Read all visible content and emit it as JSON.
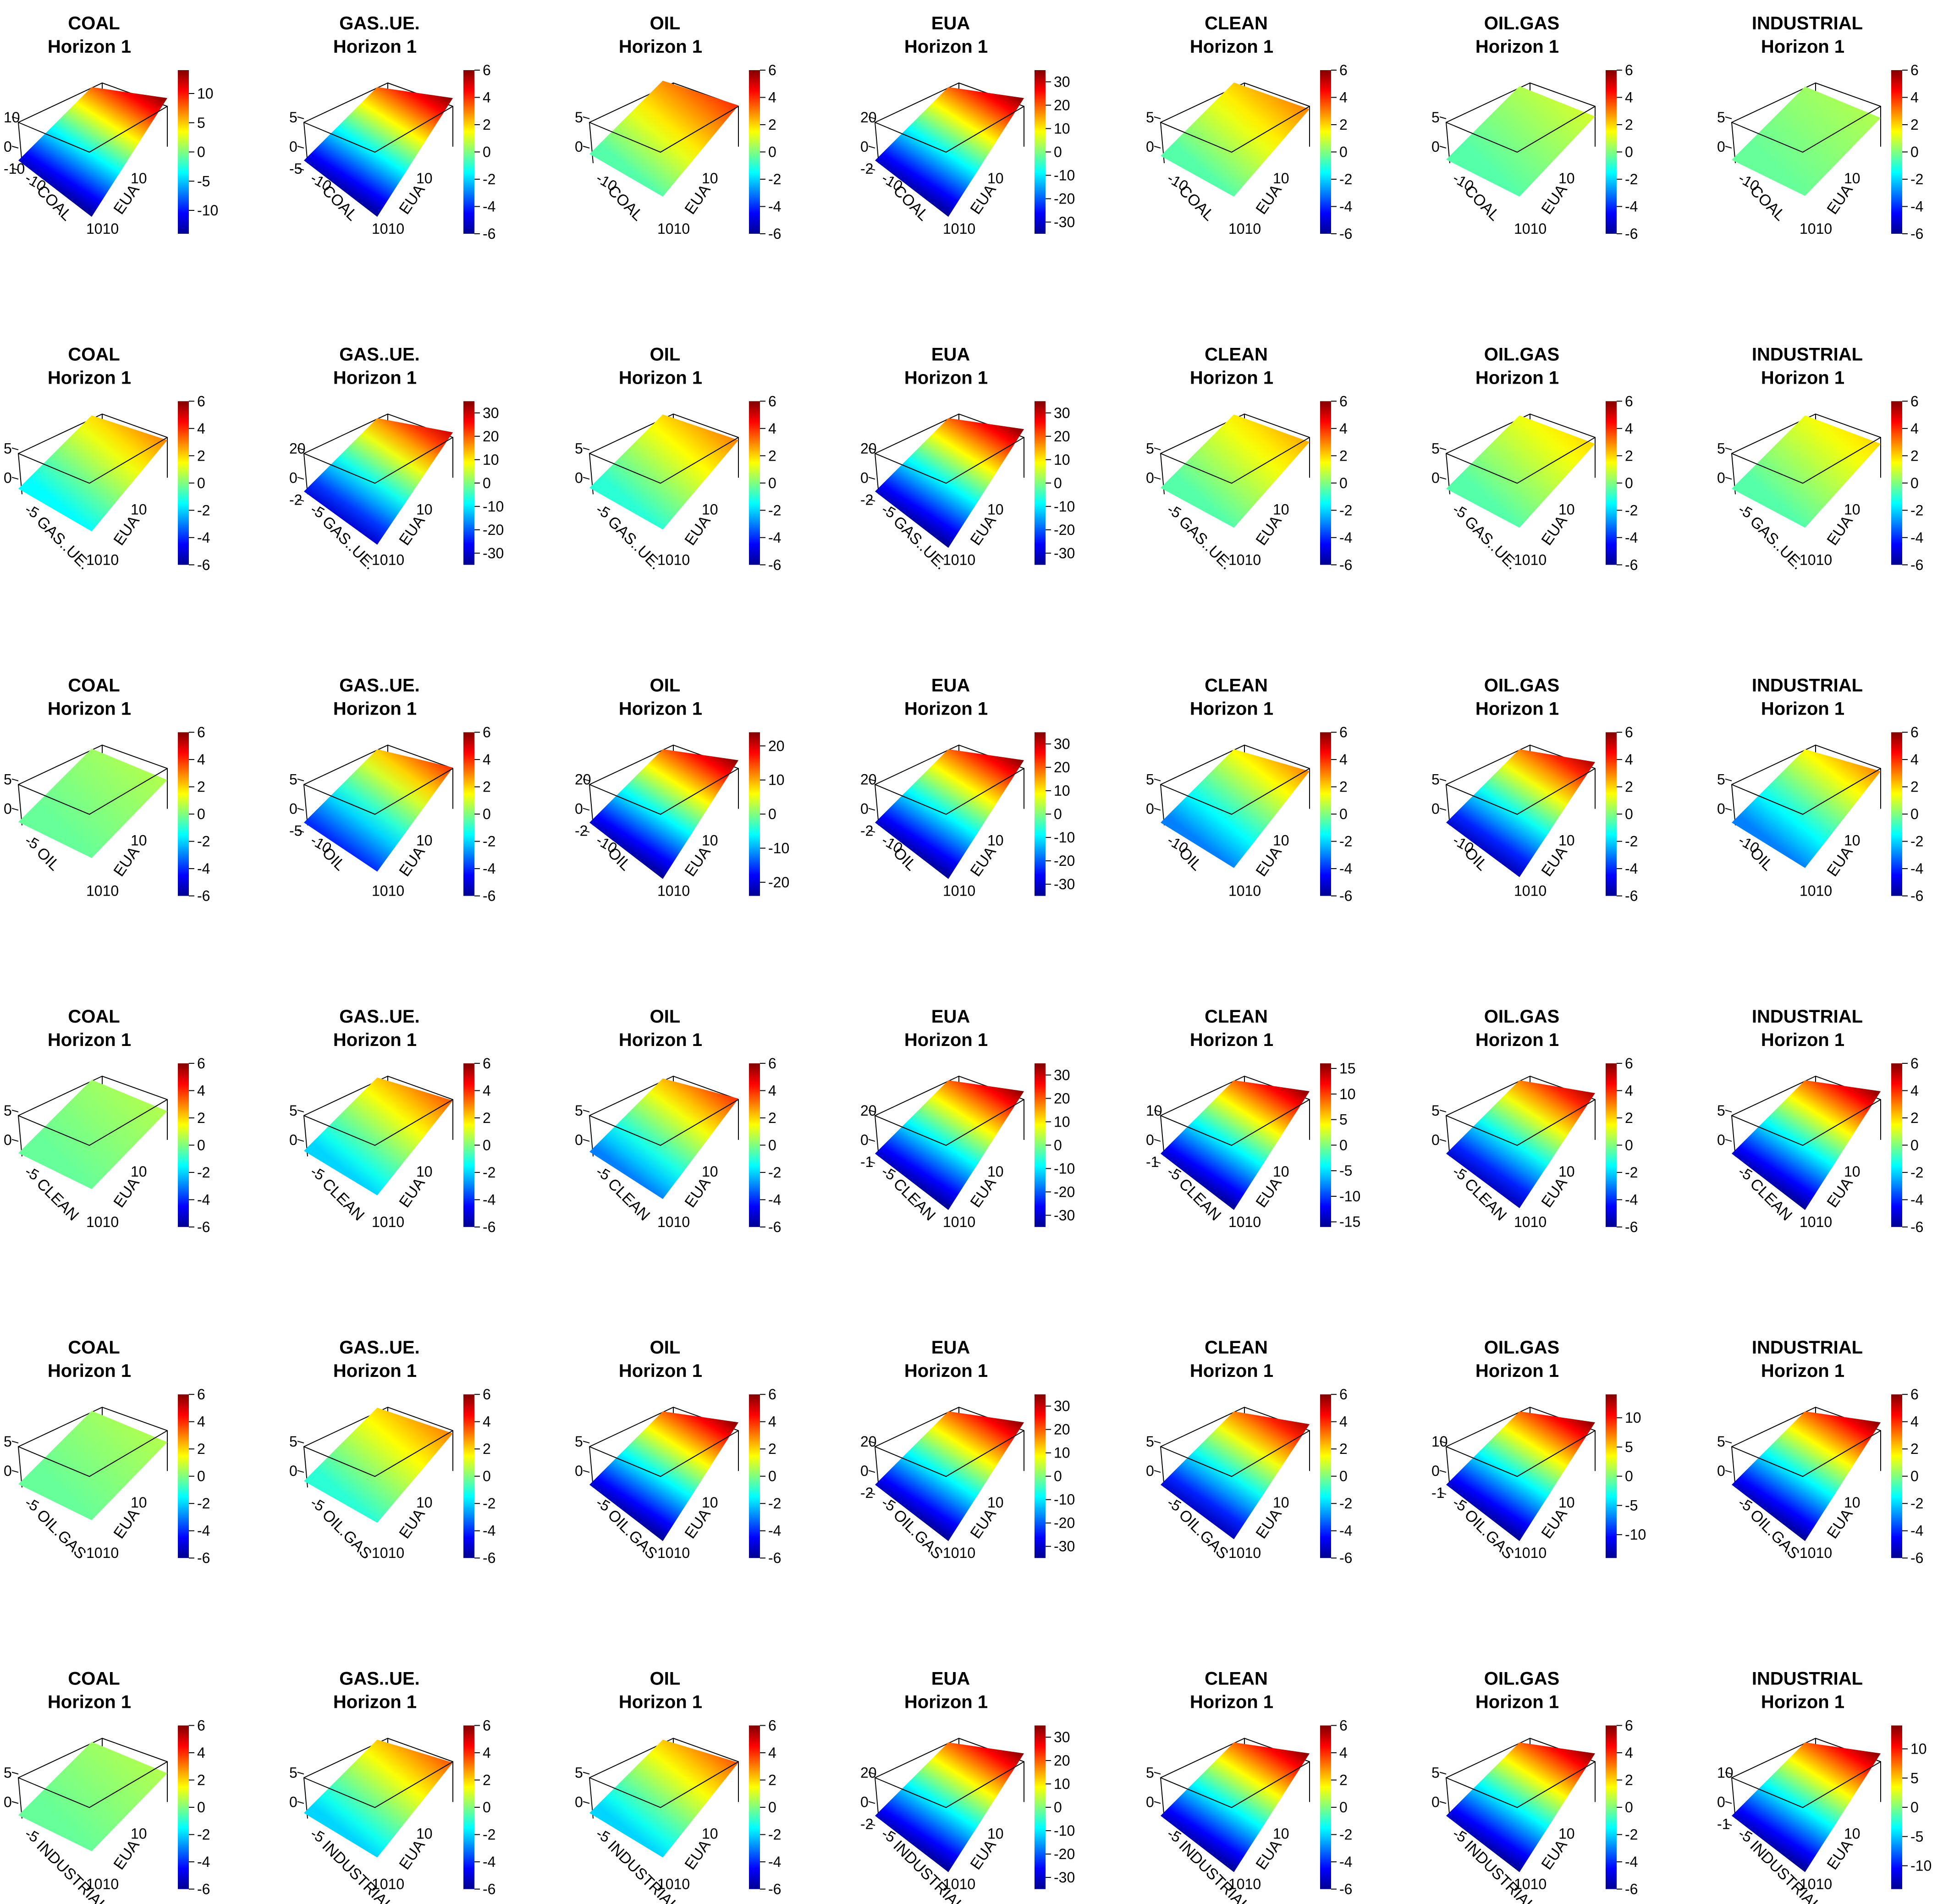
{
  "figure": {
    "title_line2": "Horizon  1",
    "colormap": [
      "#00008F",
      "#0000FF",
      "#0080FF",
      "#00FFFF",
      "#80FF80",
      "#FFFF00",
      "#FF8000",
      "#FF0000",
      "#800000"
    ],
    "box_color": "#000000",
    "background": "#FFFFFF"
  },
  "chart_data": {
    "type": "surface3d-grid",
    "rows": 6,
    "cols": 7,
    "panel_columns": [
      "COAL",
      "GAS..UE.",
      "OIL",
      "EUA",
      "CLEAN",
      "OIL.GAS",
      "INDUSTRIAL"
    ],
    "panel_rows": [
      "COAL",
      "GAS..UE.",
      "OIL",
      "CLEAN",
      "OIL.GAS",
      "INDUSTRIAL"
    ],
    "x_axis_labels": [
      "COAL",
      "GAS..UE.",
      "OIL",
      "CLEAN",
      "OIL.GAS",
      "INDUSTRIAL"
    ],
    "y_axis_label": "EUA",
    "z_axis_range": {
      "default": [
        -6,
        6
      ],
      "big": [
        -30,
        30
      ]
    },
    "colorbar": {
      "default": {
        "range": [
          -6,
          6
        ],
        "ticks": [
          "6",
          "4",
          "2",
          "0",
          "-2",
          "-4",
          "-6"
        ]
      },
      "eua": {
        "range": [
          -35,
          35
        ],
        "ticks": [
          "30",
          "20",
          "10",
          "0",
          "-10",
          "-20",
          "-30"
        ]
      },
      "c13": {
        "range": [
          -14,
          14
        ],
        "ticks": [
          "10",
          "5",
          "0",
          "-5",
          "-10"
        ]
      },
      "c20": {
        "range": [
          -24,
          24
        ],
        "ticks": [
          "20",
          "10",
          "0",
          "-10",
          "-20"
        ]
      },
      "c15": {
        "range": [
          -16,
          16
        ],
        "ticks": [
          "15",
          "10",
          "5",
          "0",
          "-5",
          "-10",
          "-15"
        ]
      }
    },
    "panels": [
      {
        "row": 0,
        "col": 0,
        "title": "COAL",
        "surface_range": [
          -14,
          14
        ],
        "colorbar": "c13",
        "z_ticks": [
          "10",
          "0",
          "-10"
        ],
        "y_ticks": [
          "10"
        ],
        "x_ticks": [
          "-10"
        ],
        "x_label": "COAL",
        "y_label": "EUA",
        "corner_ticks": "1010"
      },
      {
        "row": 0,
        "col": 1,
        "title": "GAS..UE.",
        "surface_range": [
          -6,
          6
        ],
        "colorbar": "default",
        "z_ticks": [
          "5",
          "0",
          "-5"
        ],
        "y_ticks": [
          "10"
        ],
        "x_ticks": [
          "-10"
        ],
        "x_label": "COAL",
        "y_label": "EUA",
        "corner_ticks": "1010"
      },
      {
        "row": 0,
        "col": 2,
        "title": "OIL",
        "surface_range": [
          -0.5,
          4
        ],
        "colorbar": "default",
        "z_ticks": [
          "5",
          "0"
        ],
        "y_ticks": [
          "10"
        ],
        "x_ticks": [
          "-10"
        ],
        "x_label": "COAL",
        "y_label": "EUA",
        "corner_ticks": "1010"
      },
      {
        "row": 0,
        "col": 3,
        "title": "EUA",
        "surface_range": [
          -35,
          35
        ],
        "colorbar": "eua",
        "z_ticks": [
          "20",
          "0",
          "-2"
        ],
        "y_ticks": [
          "10"
        ],
        "x_ticks": [
          "-10"
        ],
        "x_label": "COAL",
        "y_label": "EUA",
        "corner_ticks": "1010"
      },
      {
        "row": 0,
        "col": 4,
        "title": "CLEAN",
        "surface_range": [
          -0.5,
          3
        ],
        "colorbar": "default",
        "z_ticks": [
          "5",
          "0"
        ],
        "y_ticks": [
          "10"
        ],
        "x_ticks": [
          "-10"
        ],
        "x_label": "COAL",
        "y_label": "EUA",
        "corner_ticks": "1010"
      },
      {
        "row": 0,
        "col": 5,
        "title": "OIL.GAS",
        "surface_range": [
          -0.5,
          1
        ],
        "colorbar": "default",
        "z_ticks": [
          "5",
          "0"
        ],
        "y_ticks": [
          "10"
        ],
        "x_ticks": [
          "-10"
        ],
        "x_label": "COAL",
        "y_label": "EUA",
        "corner_ticks": "1010"
      },
      {
        "row": 0,
        "col": 6,
        "title": "INDUSTRIAL",
        "surface_range": [
          -0.3,
          0.6
        ],
        "colorbar": "default",
        "z_ticks": [
          "5",
          "0"
        ],
        "y_ticks": [
          "10"
        ],
        "x_ticks": [
          "-10"
        ],
        "x_label": "COAL",
        "y_label": "EUA",
        "corner_ticks": "1010"
      },
      {
        "row": 1,
        "col": 0,
        "title": "COAL",
        "surface_range": [
          -1.5,
          3
        ],
        "colorbar": "default",
        "z_ticks": [
          "5",
          "0"
        ],
        "y_ticks": [
          "10"
        ],
        "x_ticks": [
          "-5"
        ],
        "x_label": "GAS..UE.",
        "y_label": "EUA",
        "corner_ticks": "1010"
      },
      {
        "row": 1,
        "col": 1,
        "title": "GAS..UE.",
        "surface_range": [
          -30,
          30
        ],
        "colorbar": "eua",
        "z_ticks": [
          "20",
          "0",
          "-2"
        ],
        "y_ticks": [
          "10"
        ],
        "x_ticks": [
          "-5"
        ],
        "x_label": "GAS..UE.",
        "y_label": "EUA",
        "corner_ticks": "1010"
      },
      {
        "row": 1,
        "col": 2,
        "title": "OIL",
        "surface_range": [
          -1,
          3
        ],
        "colorbar": "default",
        "z_ticks": [
          "5",
          "0"
        ],
        "y_ticks": [
          "10"
        ],
        "x_ticks": [
          "-5"
        ],
        "x_label": "GAS..UE.",
        "y_label": "EUA",
        "corner_ticks": "1010"
      },
      {
        "row": 1,
        "col": 3,
        "title": "EUA",
        "surface_range": [
          -35,
          35
        ],
        "colorbar": "eua",
        "z_ticks": [
          "20",
          "0",
          "-2"
        ],
        "y_ticks": [
          "10"
        ],
        "x_ticks": [
          "-5"
        ],
        "x_label": "GAS..UE.",
        "y_label": "EUA",
        "corner_ticks": "1010"
      },
      {
        "row": 1,
        "col": 4,
        "title": "CLEAN",
        "surface_range": [
          -0.5,
          2.5
        ],
        "colorbar": "default",
        "z_ticks": [
          "5",
          "0"
        ],
        "y_ticks": [
          "10"
        ],
        "x_ticks": [
          "-5"
        ],
        "x_label": "GAS..UE.",
        "y_label": "EUA",
        "corner_ticks": "1010"
      },
      {
        "row": 1,
        "col": 5,
        "title": "OIL.GAS",
        "surface_range": [
          -0.5,
          2
        ],
        "colorbar": "default",
        "z_ticks": [
          "5",
          "0"
        ],
        "y_ticks": [
          "10"
        ],
        "x_ticks": [
          "-5"
        ],
        "x_label": "GAS..UE.",
        "y_label": "EUA",
        "corner_ticks": "1010"
      },
      {
        "row": 1,
        "col": 6,
        "title": "INDUSTRIAL",
        "surface_range": [
          -0.5,
          2
        ],
        "colorbar": "default",
        "z_ticks": [
          "5",
          "0"
        ],
        "y_ticks": [
          "10"
        ],
        "x_ticks": [
          "-5"
        ],
        "x_label": "GAS..UE.",
        "y_label": "EUA",
        "corner_ticks": "1010"
      },
      {
        "row": 2,
        "col": 0,
        "title": "COAL",
        "surface_range": [
          -0.3,
          0.6
        ],
        "colorbar": "default",
        "z_ticks": [
          "5",
          "0"
        ],
        "y_ticks": [
          "10"
        ],
        "x_ticks": [
          "-5"
        ],
        "x_label": "OIL",
        "y_label": "EUA",
        "corner_ticks": "1010"
      },
      {
        "row": 2,
        "col": 1,
        "title": "GAS..UE.",
        "surface_range": [
          -4,
          4
        ],
        "colorbar": "default",
        "z_ticks": [
          "5",
          "0",
          "-5"
        ],
        "y_ticks": [
          "10"
        ],
        "x_ticks": [
          "-10"
        ],
        "x_label": "OIL",
        "y_label": "EUA",
        "corner_ticks": "1010"
      },
      {
        "row": 2,
        "col": 2,
        "title": "OIL",
        "surface_range": [
          -24,
          24
        ],
        "colorbar": "c20",
        "z_ticks": [
          "20",
          "0",
          "-2"
        ],
        "y_ticks": [
          "10"
        ],
        "x_ticks": [
          "-10"
        ],
        "x_label": "OIL",
        "y_label": "EUA",
        "corner_ticks": "1010"
      },
      {
        "row": 2,
        "col": 3,
        "title": "EUA",
        "surface_range": [
          -35,
          35
        ],
        "colorbar": "eua",
        "z_ticks": [
          "20",
          "0",
          "-2"
        ],
        "y_ticks": [
          "10"
        ],
        "x_ticks": [
          "-10"
        ],
        "x_label": "OIL",
        "y_label": "EUA",
        "corner_ticks": "1010"
      },
      {
        "row": 2,
        "col": 4,
        "title": "CLEAN",
        "surface_range": [
          -3,
          3
        ],
        "colorbar": "default",
        "z_ticks": [
          "5",
          "0"
        ],
        "y_ticks": [
          "10"
        ],
        "x_ticks": [
          "-10"
        ],
        "x_label": "OIL",
        "y_label": "EUA",
        "corner_ticks": "1010"
      },
      {
        "row": 2,
        "col": 5,
        "title": "OIL.GAS",
        "surface_range": [
          -5.5,
          5.5
        ],
        "colorbar": "default",
        "z_ticks": [
          "5",
          "0"
        ],
        "y_ticks": [
          "10"
        ],
        "x_ticks": [
          "-10"
        ],
        "x_label": "OIL",
        "y_label": "EUA",
        "corner_ticks": "1010"
      },
      {
        "row": 2,
        "col": 6,
        "title": "INDUSTRIAL",
        "surface_range": [
          -3,
          3
        ],
        "colorbar": "default",
        "z_ticks": [
          "5",
          "0"
        ],
        "y_ticks": [
          "10"
        ],
        "x_ticks": [
          "-10"
        ],
        "x_label": "OIL",
        "y_label": "EUA",
        "corner_ticks": "1010"
      },
      {
        "row": 3,
        "col": 0,
        "title": "COAL",
        "surface_range": [
          -0.3,
          0.6
        ],
        "colorbar": "default",
        "z_ticks": [
          "5",
          "0"
        ],
        "y_ticks": [
          "10"
        ],
        "x_ticks": [
          "-5"
        ],
        "x_label": "CLEAN",
        "y_label": "EUA",
        "corner_ticks": "1010"
      },
      {
        "row": 3,
        "col": 1,
        "title": "GAS..UE.",
        "surface_range": [
          -2,
          3.5
        ],
        "colorbar": "default",
        "z_ticks": [
          "5",
          "0"
        ],
        "y_ticks": [
          "10"
        ],
        "x_ticks": [
          "-5"
        ],
        "x_label": "CLEAN",
        "y_label": "EUA",
        "corner_ticks": "1010"
      },
      {
        "row": 3,
        "col": 2,
        "title": "OIL",
        "surface_range": [
          -3,
          4
        ],
        "colorbar": "default",
        "z_ticks": [
          "5",
          "0"
        ],
        "y_ticks": [
          "10"
        ],
        "x_ticks": [
          "-5"
        ],
        "x_label": "CLEAN",
        "y_label": "EUA",
        "corner_ticks": "1010"
      },
      {
        "row": 3,
        "col": 3,
        "title": "EUA",
        "surface_range": [
          -35,
          35
        ],
        "colorbar": "eua",
        "z_ticks": [
          "20",
          "0",
          "-1"
        ],
        "y_ticks": [
          "10"
        ],
        "x_ticks": [
          "-5"
        ],
        "x_label": "CLEAN",
        "y_label": "EUA",
        "corner_ticks": "1010"
      },
      {
        "row": 3,
        "col": 4,
        "title": "CLEAN",
        "surface_range": [
          -16,
          16
        ],
        "colorbar": "c15",
        "z_ticks": [
          "10",
          "0",
          "-1"
        ],
        "y_ticks": [
          "10"
        ],
        "x_ticks": [
          "-5"
        ],
        "x_label": "CLEAN",
        "y_label": "EUA",
        "corner_ticks": "1010"
      },
      {
        "row": 3,
        "col": 5,
        "title": "OIL.GAS",
        "surface_range": [
          -5.5,
          5.5
        ],
        "colorbar": "default",
        "z_ticks": [
          "5",
          "0"
        ],
        "y_ticks": [
          "10"
        ],
        "x_ticks": [
          "-5"
        ],
        "x_label": "CLEAN",
        "y_label": "EUA",
        "corner_ticks": "1010"
      },
      {
        "row": 3,
        "col": 6,
        "title": "INDUSTRIAL",
        "surface_range": [
          -6,
          6
        ],
        "colorbar": "default",
        "z_ticks": [
          "5",
          "0"
        ],
        "y_ticks": [
          "10"
        ],
        "x_ticks": [
          "-5"
        ],
        "x_label": "CLEAN",
        "y_label": "EUA",
        "corner_ticks": "1010"
      },
      {
        "row": 4,
        "col": 0,
        "title": "COAL",
        "surface_range": [
          -0.3,
          0.6
        ],
        "colorbar": "default",
        "z_ticks": [
          "5",
          "0"
        ],
        "y_ticks": [
          "10"
        ],
        "x_ticks": [
          "-5"
        ],
        "x_label": "OIL.GAS",
        "y_label": "EUA",
        "corner_ticks": "1010"
      },
      {
        "row": 4,
        "col": 1,
        "title": "GAS..UE.",
        "surface_range": [
          -1,
          3
        ],
        "colorbar": "default",
        "z_ticks": [
          "5",
          "0"
        ],
        "y_ticks": [
          "10"
        ],
        "x_ticks": [
          "-5"
        ],
        "x_label": "OIL.GAS",
        "y_label": "EUA",
        "corner_ticks": "1010"
      },
      {
        "row": 4,
        "col": 2,
        "title": "OIL",
        "surface_range": [
          -6,
          6
        ],
        "colorbar": "default",
        "z_ticks": [
          "5",
          "0"
        ],
        "y_ticks": [
          "10"
        ],
        "x_ticks": [
          "-5"
        ],
        "x_label": "OIL.GAS",
        "y_label": "EUA",
        "corner_ticks": "1010"
      },
      {
        "row": 4,
        "col": 3,
        "title": "EUA",
        "surface_range": [
          -35,
          35
        ],
        "colorbar": "eua",
        "z_ticks": [
          "20",
          "0",
          "-2"
        ],
        "y_ticks": [
          "10"
        ],
        "x_ticks": [
          "-5"
        ],
        "x_label": "OIL.GAS",
        "y_label": "EUA",
        "corner_ticks": "1010"
      },
      {
        "row": 4,
        "col": 4,
        "title": "CLEAN",
        "surface_range": [
          -5.5,
          5.5
        ],
        "colorbar": "default",
        "z_ticks": [
          "5",
          "0"
        ],
        "y_ticks": [
          "10"
        ],
        "x_ticks": [
          "-5"
        ],
        "x_label": "OIL.GAS",
        "y_label": "EUA",
        "corner_ticks": "1010"
      },
      {
        "row": 4,
        "col": 5,
        "title": "OIL.GAS",
        "surface_range": [
          -14,
          14
        ],
        "colorbar": "c13",
        "z_ticks": [
          "10",
          "0",
          "-1"
        ],
        "y_ticks": [
          "10"
        ],
        "x_ticks": [
          "-5"
        ],
        "x_label": "OIL.GAS",
        "y_label": "EUA",
        "corner_ticks": "1010"
      },
      {
        "row": 4,
        "col": 6,
        "title": "INDUSTRIAL",
        "surface_range": [
          -6,
          6
        ],
        "colorbar": "default",
        "z_ticks": [
          "5",
          "0"
        ],
        "y_ticks": [
          "10"
        ],
        "x_ticks": [
          "-5"
        ],
        "x_label": "OIL.GAS",
        "y_label": "EUA",
        "corner_ticks": "1010"
      },
      {
        "row": 5,
        "col": 0,
        "title": "COAL",
        "surface_range": [
          -0.3,
          0.6
        ],
        "colorbar": "default",
        "z_ticks": [
          "5",
          "0"
        ],
        "y_ticks": [
          "10"
        ],
        "x_ticks": [
          "-5"
        ],
        "x_label": "INDUSTRIAL",
        "y_label": "EUA",
        "corner_ticks": "1010"
      },
      {
        "row": 5,
        "col": 1,
        "title": "GAS..UE.",
        "surface_range": [
          -2,
          3.5
        ],
        "colorbar": "default",
        "z_ticks": [
          "5",
          "0"
        ],
        "y_ticks": [
          "10"
        ],
        "x_ticks": [
          "-5"
        ],
        "x_label": "INDUSTRIAL",
        "y_label": "EUA",
        "corner_ticks": "1010"
      },
      {
        "row": 5,
        "col": 2,
        "title": "OIL",
        "surface_range": [
          -2,
          3.5
        ],
        "colorbar": "default",
        "z_ticks": [
          "5",
          "0"
        ],
        "y_ticks": [
          "10"
        ],
        "x_ticks": [
          "-5"
        ],
        "x_label": "INDUSTRIAL",
        "y_label": "EUA",
        "corner_ticks": "1010"
      },
      {
        "row": 5,
        "col": 3,
        "title": "EUA",
        "surface_range": [
          -35,
          35
        ],
        "colorbar": "eua",
        "z_ticks": [
          "20",
          "0",
          "-2"
        ],
        "y_ticks": [
          "10"
        ],
        "x_ticks": [
          "-5"
        ],
        "x_label": "INDUSTRIAL",
        "y_label": "EUA",
        "corner_ticks": "1010"
      },
      {
        "row": 5,
        "col": 4,
        "title": "CLEAN",
        "surface_range": [
          -6,
          6
        ],
        "colorbar": "default",
        "z_ticks": [
          "5",
          "0"
        ],
        "y_ticks": [
          "10"
        ],
        "x_ticks": [
          "-5"
        ],
        "x_label": "INDUSTRIAL",
        "y_label": "EUA",
        "corner_ticks": "1010"
      },
      {
        "row": 5,
        "col": 5,
        "title": "OIL.GAS",
        "surface_range": [
          -6,
          6
        ],
        "colorbar": "default",
        "z_ticks": [
          "5",
          "0"
        ],
        "y_ticks": [
          "10"
        ],
        "x_ticks": [
          "-5"
        ],
        "x_label": "INDUSTRIAL",
        "y_label": "EUA",
        "corner_ticks": "1010"
      },
      {
        "row": 5,
        "col": 6,
        "title": "INDUSTRIAL",
        "surface_range": [
          -14,
          14
        ],
        "colorbar": "c13",
        "z_ticks": [
          "10",
          "0",
          "-1"
        ],
        "y_ticks": [
          "10"
        ],
        "x_ticks": [
          "-5"
        ],
        "x_label": "INDUSTRIAL",
        "y_label": "EUA",
        "corner_ticks": "1010"
      }
    ]
  }
}
